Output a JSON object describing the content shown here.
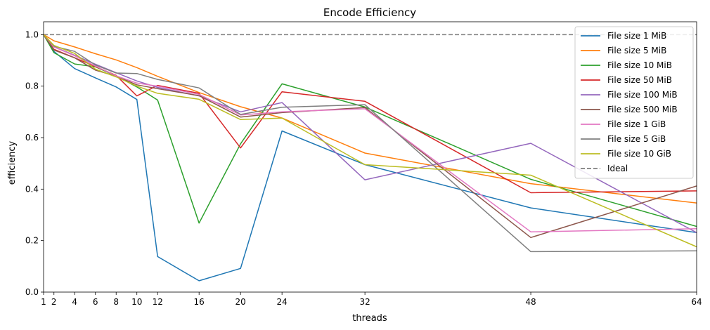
{
  "chart_data": {
    "type": "line",
    "title": "Encode Efficiency",
    "xlabel": "threads",
    "ylabel": "efficiency",
    "xlim": [
      1,
      64
    ],
    "ylim": [
      0,
      1.05
    ],
    "x": [
      1,
      2,
      4,
      6,
      8,
      10,
      12,
      16,
      20,
      24,
      32,
      48,
      64
    ],
    "xticks": [
      1,
      2,
      4,
      6,
      8,
      10,
      12,
      16,
      20,
      24,
      32,
      48,
      64
    ],
    "yticks": [
      0.0,
      0.2,
      0.4,
      0.6,
      0.8,
      1.0
    ],
    "ytick_labels": [
      "0.0",
      "0.2",
      "0.4",
      "0.6",
      "0.8",
      "1.0"
    ],
    "legend_position": "top-right",
    "grid": false,
    "series": [
      {
        "name": "File size 1 MiB",
        "color": "#1f77b4",
        "values": [
          1.0,
          0.935,
          0.868,
          0.832,
          0.797,
          0.748,
          0.138,
          0.044,
          0.092,
          0.626,
          0.495,
          0.327,
          0.231
        ]
      },
      {
        "name": "File size 5 MiB",
        "color": "#ff7f0e",
        "values": [
          1.0,
          0.976,
          0.952,
          0.926,
          0.902,
          0.872,
          0.838,
          0.775,
          0.72,
          0.676,
          0.54,
          0.421,
          0.346
        ]
      },
      {
        "name": "File size 10 MiB",
        "color": "#2ca02c",
        "values": [
          1.0,
          0.93,
          0.886,
          0.875,
          0.84,
          0.797,
          0.746,
          0.268,
          0.576,
          0.809,
          0.719,
          0.438,
          0.255
        ]
      },
      {
        "name": "File size 50 MiB",
        "color": "#d62728",
        "values": [
          1.0,
          0.943,
          0.91,
          0.876,
          0.842,
          0.762,
          0.803,
          0.772,
          0.56,
          0.778,
          0.741,
          0.386,
          0.393
        ]
      },
      {
        "name": "File size 100 MiB",
        "color": "#9467bd",
        "values": [
          1.0,
          0.953,
          0.92,
          0.885,
          0.852,
          0.82,
          0.795,
          0.762,
          0.7,
          0.736,
          0.436,
          0.578,
          0.231
        ]
      },
      {
        "name": "File size 500 MiB",
        "color": "#8c564b",
        "values": [
          1.0,
          0.94,
          0.91,
          0.862,
          0.839,
          0.805,
          0.79,
          0.763,
          0.68,
          0.697,
          0.717,
          0.212,
          0.412
        ]
      },
      {
        "name": "File size 1 GiB",
        "color": "#e377c2",
        "values": [
          1.0,
          0.952,
          0.918,
          0.878,
          0.84,
          0.812,
          0.8,
          0.768,
          0.688,
          0.7,
          0.712,
          0.234,
          0.246
        ]
      },
      {
        "name": "File size 5 GiB",
        "color": "#7f7f7f",
        "values": [
          1.0,
          0.955,
          0.935,
          0.882,
          0.851,
          0.849,
          0.826,
          0.793,
          0.69,
          0.718,
          0.728,
          0.157,
          0.16
        ]
      },
      {
        "name": "File size 10 GiB",
        "color": "#bcbd22",
        "values": [
          1.0,
          0.958,
          0.927,
          0.866,
          0.836,
          0.8,
          0.772,
          0.749,
          0.67,
          0.676,
          0.495,
          0.454,
          0.176
        ]
      }
    ],
    "reference_line": {
      "name": "Ideal",
      "value": 1.0,
      "color": "#7f7f7f",
      "style": "dashed"
    }
  }
}
